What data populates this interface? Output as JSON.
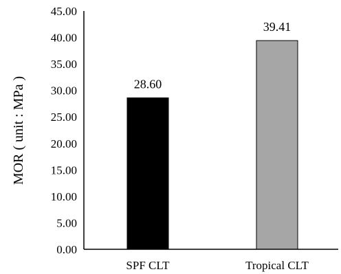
{
  "chart_data": {
    "type": "bar",
    "categories": [
      "SPF CLT",
      "Tropical CLT"
    ],
    "values": [
      28.6,
      39.41
    ],
    "value_labels": [
      "28.60",
      "39.41"
    ],
    "title": "",
    "xlabel": "",
    "ylabel": "MOR ( unit : MPa )",
    "ylim": [
      0,
      45
    ],
    "yticks": [
      "0.00",
      "5.00",
      "10.00",
      "15.00",
      "20.00",
      "25.00",
      "30.00",
      "35.00",
      "40.00",
      "45.00"
    ],
    "grid": false,
    "legend": "none",
    "bar_colors": [
      "#000000",
      "#a6a6a6"
    ],
    "bar_edge_color": "#000000"
  }
}
